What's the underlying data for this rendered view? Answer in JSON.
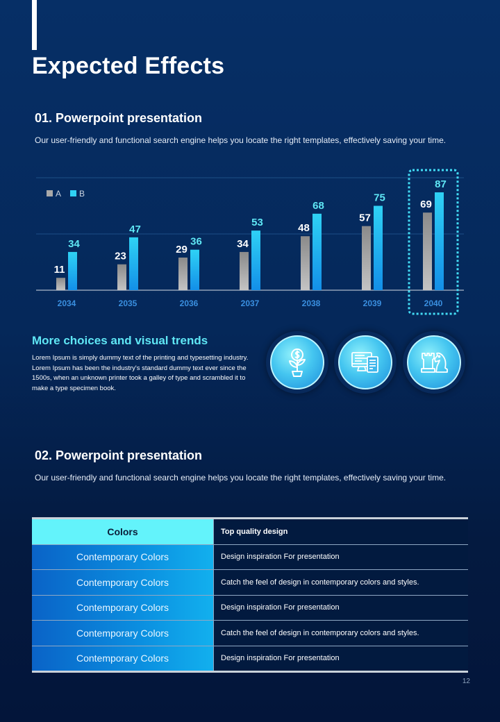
{
  "page": {
    "title": "Expected Effects",
    "page_number": "12"
  },
  "section1": {
    "title": "01. Powerpoint presentation",
    "description": "Our user-friendly and functional search engine helps you locate the right templates, effectively saving your time."
  },
  "chart_data": {
    "type": "bar",
    "categories": [
      "2034",
      "2035",
      "2036",
      "2037",
      "2038",
      "2039",
      "2040"
    ],
    "series": [
      {
        "name": "A",
        "values": [
          11,
          23,
          29,
          34,
          48,
          57,
          69
        ]
      },
      {
        "name": "B",
        "values": [
          34,
          47,
          36,
          53,
          68,
          75,
          87
        ]
      }
    ],
    "title": "",
    "xlabel": "",
    "ylabel": "",
    "ylim": [
      0,
      100
    ],
    "grid": true,
    "legend": "top-left",
    "highlighted_category": "2040",
    "colors": {
      "A": "#a9a9a9",
      "B": "#2fd2f5",
      "label_A": "#ffffff",
      "label_B": "#5fe7f5",
      "axis_label": "#3a8fe0"
    }
  },
  "trends": {
    "title": "More choices and visual trends",
    "text": "Lorem Ipsum is simply dummy text of the printing and typesetting industry. Lorem Ipsum has been the industry's standard dummy text ever since the 1500s, when an unknown printer took a galley of type and scrambled it to make a type specimen book.",
    "icons": [
      "money-plant-icon",
      "computer-document-icon",
      "chess-knight-icon"
    ]
  },
  "section2": {
    "title": "02. Powerpoint presentation",
    "description": "Our user-friendly and functional search engine helps you locate the right templates, effectively saving your time."
  },
  "table": {
    "header": {
      "left": "Colors",
      "right": "Top quality design"
    },
    "rows": [
      {
        "left": "Contemporary Colors",
        "right": "Design inspiration For presentation"
      },
      {
        "left": "Contemporary Colors",
        "right": "Catch the feel of design in contemporary  colors and styles."
      },
      {
        "left": "Contemporary Colors",
        "right": "Design inspiration For presentation"
      },
      {
        "left": "Contemporary Colors",
        "right": "Catch the feel of design in contemporary  colors and styles."
      },
      {
        "left": "Contemporary Colors",
        "right": "Design inspiration For presentation"
      }
    ]
  }
}
